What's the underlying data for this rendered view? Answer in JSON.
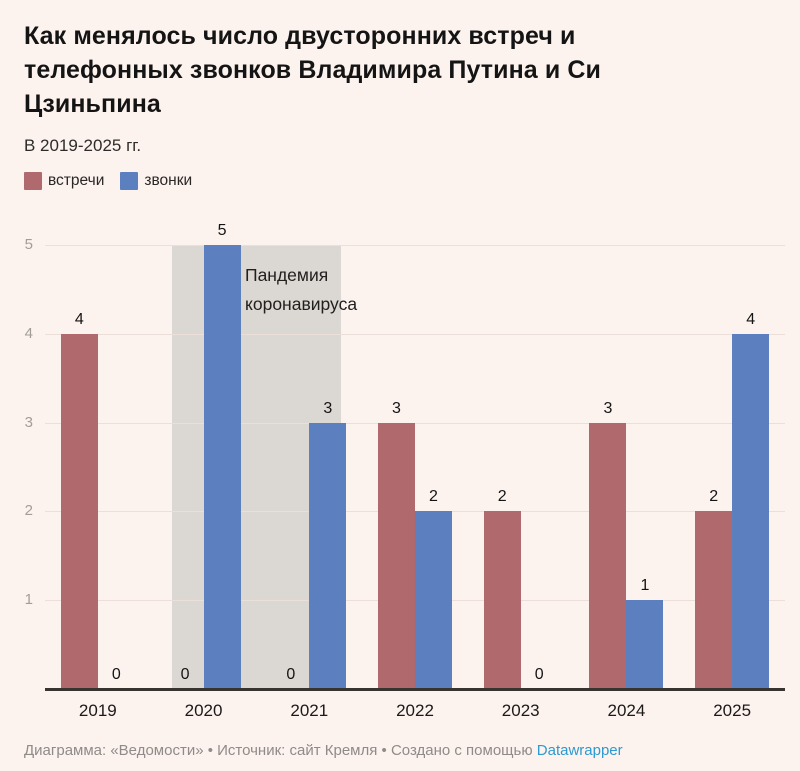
{
  "page": {
    "background": "#fcf2ee"
  },
  "header": {
    "title": "Как менялось число двусторонних встреч и телефонных звонков Владимира Путина и Си Цзиньпина",
    "subtitle": "В 2019-2025 гг."
  },
  "chart_data": {
    "type": "bar",
    "categories": [
      "2019",
      "2020",
      "2021",
      "2022",
      "2023",
      "2024",
      "2025"
    ],
    "series": [
      {
        "id": "meetings",
        "name": "встречи",
        "color": "#b0696d",
        "values": [
          4,
          0,
          0,
          3,
          2,
          3,
          2
        ]
      },
      {
        "id": "calls",
        "name": "звонки",
        "color": "#5c80bf",
        "values": [
          0,
          5,
          3,
          2,
          0,
          1,
          4
        ]
      }
    ],
    "ylim": [
      0,
      5
    ],
    "yticks": [
      1,
      2,
      3,
      4,
      5
    ],
    "grid": true,
    "legend_position": "top-left",
    "bar_value_labels": true,
    "annotation": {
      "type": "x-range-highlight",
      "label": "Пандемия коронавируса",
      "color": "#dbd7d2",
      "start_frac": 0.172,
      "end_frac": 0.4
    }
  },
  "footer": {
    "text": "Диаграмма: «Ведомости» • Источник: сайт Кремля • Создано с помощью ",
    "link": "Datawrapper"
  }
}
